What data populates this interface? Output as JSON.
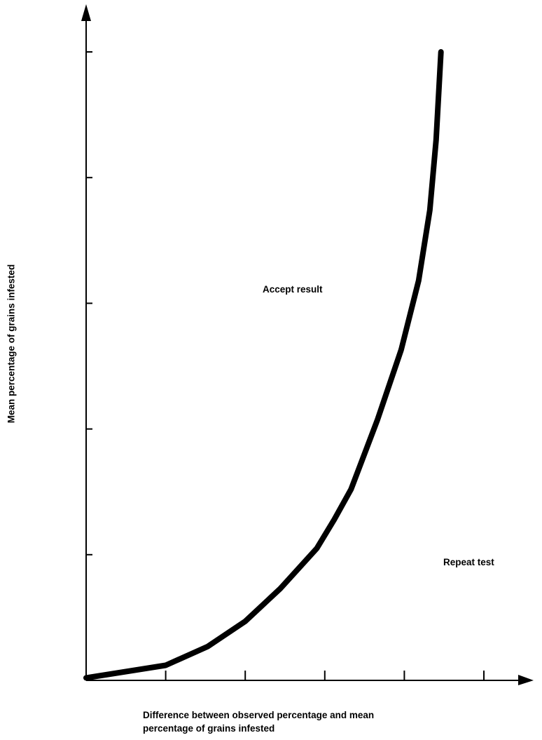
{
  "chart_data": {
    "type": "line",
    "title": "",
    "xlabel_lines": [
      "Difference between observed percentage and mean",
      "percentage of grains infested"
    ],
    "ylabel": "Mean percentage of grains infested",
    "x_ticks": 5,
    "y_ticks": 5,
    "xlim": [
      0,
      5.6
    ],
    "ylim": [
      0,
      5.4
    ],
    "tick_labels_shown": false,
    "grid": false,
    "annotations": [
      {
        "text": "Accept result",
        "region": "above-left of curve"
      },
      {
        "text": "Repeat test",
        "region": "below-right of curve"
      }
    ],
    "series": [
      {
        "color": "#000000",
        "x": [
          0,
          1,
          1.53,
          2,
          2.44,
          2.9,
          3.12,
          3.33,
          3.66,
          3.96,
          4.18,
          4.32,
          4.4,
          4.46
        ],
        "y": [
          0.02,
          0.12,
          0.27,
          0.47,
          0.73,
          1.05,
          1.28,
          1.52,
          2.07,
          2.63,
          3.18,
          3.74,
          4.3,
          5.0
        ]
      }
    ]
  }
}
